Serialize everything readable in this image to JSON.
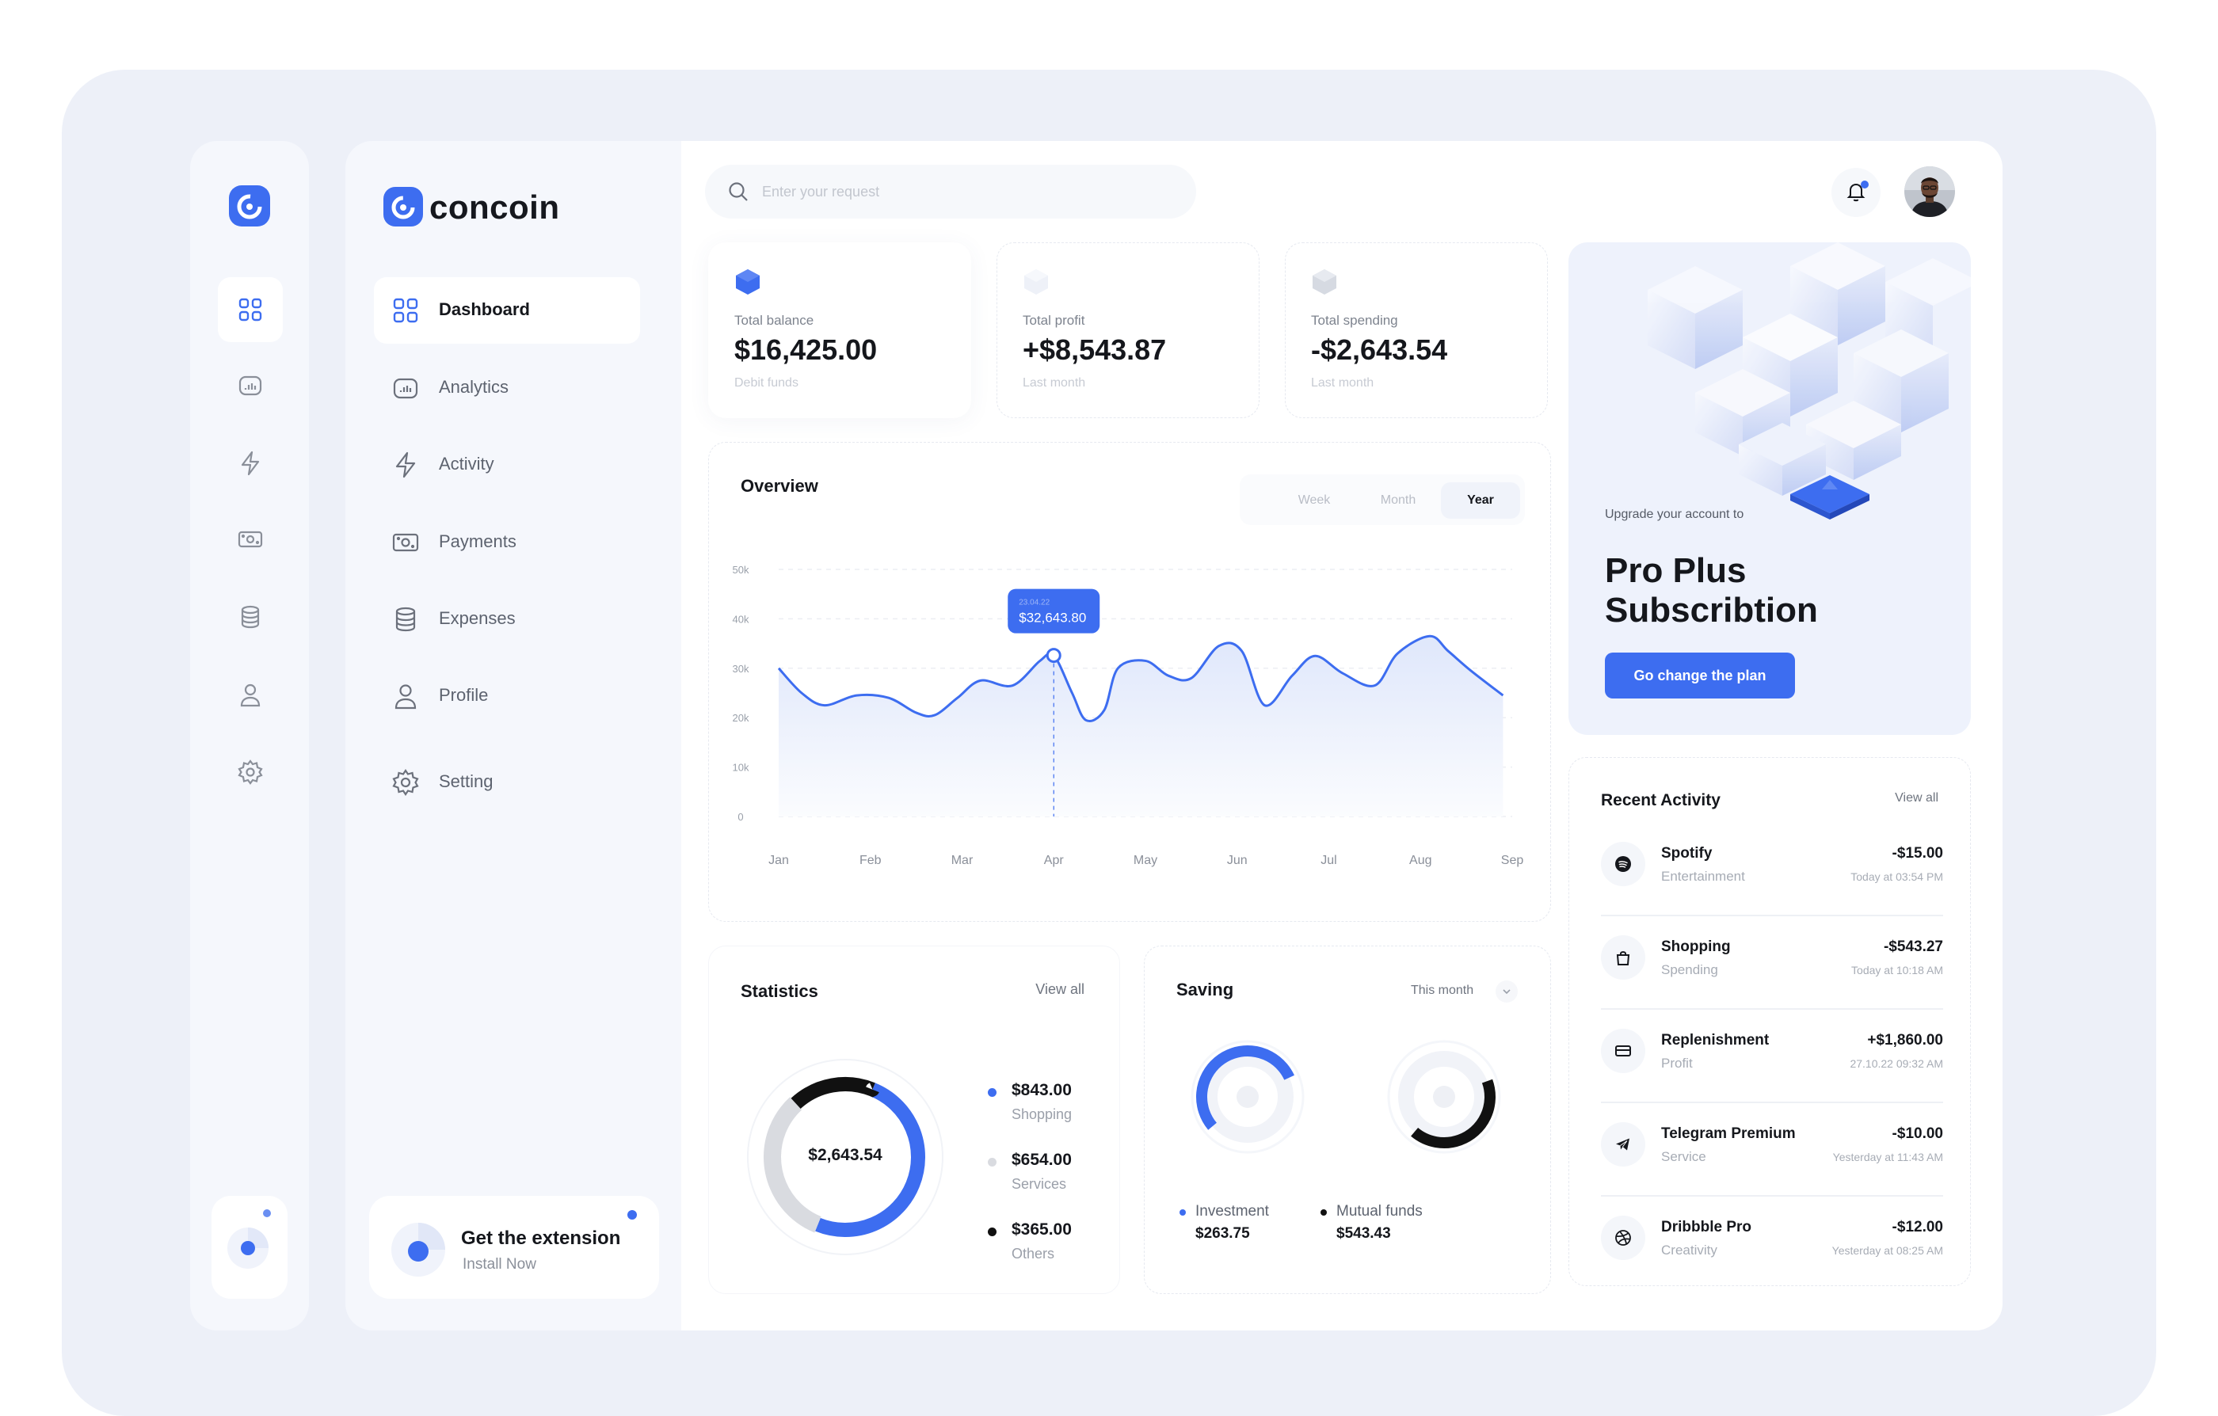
{
  "brand": {
    "name": "concoin"
  },
  "search": {
    "placeholder": "Enter your request"
  },
  "nav": [
    {
      "label": "Dashboard",
      "icon": "grid-icon"
    },
    {
      "label": "Analytics",
      "icon": "analytics-icon"
    },
    {
      "label": "Activity",
      "icon": "lightning-icon"
    },
    {
      "label": "Payments",
      "icon": "money-icon"
    },
    {
      "label": "Expenses",
      "icon": "database-icon"
    },
    {
      "label": "Profile",
      "icon": "user-icon"
    },
    {
      "label": "Setting",
      "icon": "gear-icon"
    }
  ],
  "extension": {
    "title": "Get the extension",
    "subtitle": "Install Now"
  },
  "stats": [
    {
      "label": "Total balance",
      "value": "$16,425.00",
      "sub": "Debit funds"
    },
    {
      "label": "Total profit",
      "value": "+$8,543.87",
      "sub": "Last month"
    },
    {
      "label": "Total spending",
      "value": "-$2,643.54",
      "sub": "Last month"
    }
  ],
  "overview": {
    "title": "Overview",
    "ranges": [
      "Week",
      "Month",
      "Year"
    ],
    "selected_range": "Year",
    "tooltip": {
      "date": "23.04.22",
      "value": "$32,643.80"
    }
  },
  "chart_data": {
    "type": "area",
    "title": "Overview",
    "x_ticks": [
      "Jan",
      "Feb",
      "Mar",
      "Apr",
      "May",
      "Jun",
      "Jul",
      "Aug",
      "Sep"
    ],
    "y_ticks": [
      "0",
      "10k",
      "20k",
      "30k",
      "40k",
      "50k"
    ],
    "ylim": [
      0,
      50000
    ],
    "grid": true,
    "series": [
      {
        "x": [
          0,
          0.25,
          0.5,
          0.85,
          1.2,
          1.5,
          1.7,
          1.95,
          2.2,
          2.55,
          2.85,
          3.0,
          3.2,
          3.35,
          3.55,
          3.7,
          4.0,
          4.25,
          4.5,
          4.8,
          5.05,
          5.3,
          5.6,
          5.85,
          6.15,
          6.5,
          6.75,
          7.1,
          7.3,
          7.55,
          7.9
        ],
        "y": [
          30000,
          25000,
          22500,
          24500,
          24000,
          21000,
          20500,
          24000,
          27500,
          26500,
          31500,
          32600,
          25000,
          19500,
          21500,
          30000,
          31500,
          28500,
          28000,
          34500,
          33500,
          22500,
          28500,
          32500,
          29000,
          26500,
          33000,
          36500,
          33500,
          29500,
          24500
        ]
      }
    ]
  },
  "statistics": {
    "title": "Statistics",
    "view_all": "View all",
    "center": "$2,643.54",
    "items": [
      {
        "value": "$843.00",
        "name": "Shopping",
        "color": "#3d6df0",
        "share": 0.5
      },
      {
        "value": "$654.00",
        "name": "Services",
        "color": "#d9dbe0",
        "share": 0.32
      },
      {
        "value": "$365.00",
        "name": "Others",
        "color": "#111111",
        "share": 0.18
      }
    ]
  },
  "saving": {
    "title": "Saving",
    "period": "This month",
    "items": [
      {
        "name": "Investment",
        "value": "$263.75",
        "color": "#3d6df0"
      },
      {
        "name": "Mutual funds",
        "value": "$543.43",
        "color": "#111111"
      }
    ]
  },
  "promo": {
    "upgrade": "Upgrade your account to",
    "title": "Pro Plus Subscribtion",
    "button": "Go change the plan"
  },
  "recent": {
    "title": "Recent Activity",
    "view_all": "View all",
    "items": [
      {
        "name": "Spotify",
        "category": "Entertainment",
        "amount": "-$15.00",
        "time": "Today at 03:54 PM",
        "icon": "spotify-icon"
      },
      {
        "name": "Shopping",
        "category": "Spending",
        "amount": "-$543.27",
        "time": "Today at 10:18 AM",
        "icon": "shopping-bag-icon"
      },
      {
        "name": "Replenishment",
        "category": "Profit",
        "amount": "+$1,860.00",
        "time": "27.10.22 09:32 AM",
        "icon": "card-icon"
      },
      {
        "name": "Telegram Premium",
        "category": "Service",
        "amount": "-$10.00",
        "time": "Yesterday at 11:43 AM",
        "icon": "telegram-icon"
      },
      {
        "name": "Dribbble Pro",
        "category": "Creativity",
        "amount": "-$12.00",
        "time": "Yesterday at 08:25 AM",
        "icon": "dribbble-icon"
      }
    ]
  },
  "colors": {
    "accent": "#3d6df0",
    "background": "#edf0f8",
    "panel": "#f5f7fc"
  }
}
